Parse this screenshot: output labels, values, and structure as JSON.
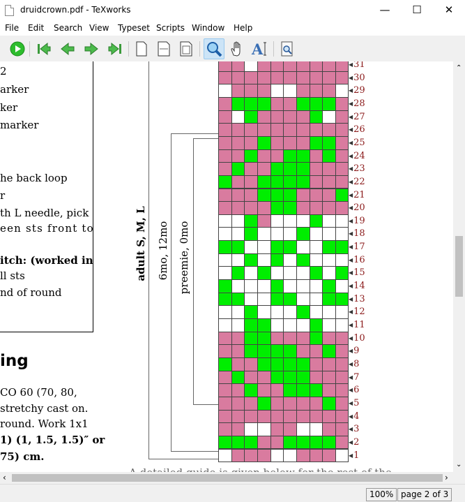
{
  "window": {
    "title": "druidcrown.pdf - TeXworks",
    "minimize_icon": "minimize-icon",
    "maximize_icon": "maximize-icon",
    "close_icon": "close-icon"
  },
  "menu": [
    "File",
    "Edit",
    "Search",
    "View",
    "Typeset",
    "Scripts",
    "Window",
    "Help"
  ],
  "toolbar": [
    "typeset-run-icon",
    "first-page-icon",
    "previous-page-icon",
    "next-page-icon",
    "last-page-icon",
    "actual-size-icon",
    "fit-width-icon",
    "fit-window-icon",
    "magnify-tool-icon",
    "scroll-hand-icon",
    "text-select-icon",
    "find-in-pdf-icon"
  ],
  "page": {
    "box_lines": [
      "2",
      "arker",
      "ker",
      "marker",
      "he back loop",
      "r",
      "th L needle, pick",
      "een sts front to",
      "itch: (worked in",
      "ll sts",
      "nd of round"
    ],
    "heading": "ing",
    "body_lines": [
      "CO 60 (70, 80,",
      "stretchy cast on.",
      "round. Work 1x1",
      "1) (1, 1.5, 1.5)″ or",
      "75) cm."
    ],
    "bottom_cutoff": "A detailed guide is given below for the rest of the"
  },
  "chart_data": {
    "type": "heatmap",
    "colors": {
      "P": "#d97b9f",
      "G": "#00ee00",
      "W": "#ffffff"
    },
    "row_labels": [
      "31",
      "30",
      "29",
      "28",
      "27",
      "26",
      "25",
      "24",
      "23",
      "22",
      "21",
      "20",
      "19",
      "18",
      "17",
      "16",
      "15",
      "14",
      "13",
      "12",
      "11",
      "10",
      "9",
      "8",
      "7",
      "6",
      "5",
      "4",
      "3",
      "2",
      "1"
    ],
    "rows": [
      "PPWPPPPPPP",
      "PPPPPPPPPP",
      "WPPPWWPPPW",
      "PGGGPPGGGP",
      "PWGPPPPGWP",
      "PPPPPPPPPP",
      "PPPGPPPGGP",
      "PPGPPGGPGP",
      "PGPPGGGPPP",
      "GPPGGGGPPP",
      "PPPGGGPPPG",
      "PPPPGGPPPP",
      "WWGPWWWGWW",
      "WWGWWWGWWW",
      "GGWWGGWWGG",
      "WWGWGWGWWW",
      "WGWGWWWGWG",
      "GWWWGWWWGW",
      "GGWWGGWWGG",
      "WWGWWWGWWW",
      "WWGGWWWGWW",
      "PPGGPPPGPP",
      "PPGGGGPPGP",
      "GPPGGGGPPP",
      "PGPPGGGPPP",
      "PPGPPGGGPP",
      "PPPGPPPPGP",
      "PPPPPPPPPP",
      "PPWWPPWWPP",
      "GGGPPGGGGP",
      "WPPPWWPPPW"
    ],
    "brackets": [
      "adult S, M, L",
      "6mo, 12mo",
      "preemie, 0mo"
    ]
  },
  "statusbar": {
    "zoom": "100%",
    "page": "page 2 of 3"
  }
}
